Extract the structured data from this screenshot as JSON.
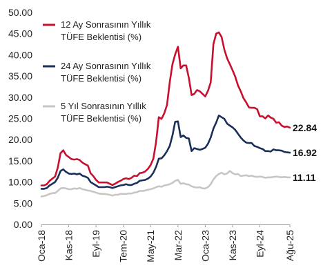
{
  "chart_data": {
    "type": "line",
    "title": "",
    "xlabel": "",
    "ylabel": "",
    "ylim": [
      0,
      50
    ],
    "y_ticks": [
      "0.00",
      "5.00",
      "10.00",
      "15.00",
      "20.00",
      "25.00",
      "30.00",
      "35.00",
      "40.00",
      "45.00",
      "50.00"
    ],
    "x_range": [
      "2018-01",
      "2025-08"
    ],
    "x_ticks": [
      "Oca-18",
      "Kas-18",
      "Eyl-19",
      "Tem-20",
      "May-21",
      "Mar-22",
      "Oca-23",
      "Kas-23",
      "Eyl-24",
      "Ağu-25"
    ],
    "x_tick_dates": [
      "2018-01",
      "2018-11",
      "2019-09",
      "2020-07",
      "2021-05",
      "2022-03",
      "2023-01",
      "2023-11",
      "2024-09",
      "2025-08"
    ],
    "grid": false,
    "legend_position": "top-left",
    "series": [
      {
        "name": "12 Ay Sonrasının Yıllık TÜFE Beklentisi (%)",
        "name_lines": [
          "12 Ay Sonrasının Yıllık",
          "TÜFE Beklentisi (%)"
        ],
        "color": "#c8102e",
        "end_label": "22.84",
        "points": [
          [
            "2018-01",
            9.2
          ],
          [
            "2018-02",
            9.2
          ],
          [
            "2018-03",
            9.5
          ],
          [
            "2018-04",
            10.3
          ],
          [
            "2018-05",
            10.8
          ],
          [
            "2018-06",
            11.3
          ],
          [
            "2018-07",
            13.4
          ],
          [
            "2018-08",
            16.8
          ],
          [
            "2018-09",
            17.5
          ],
          [
            "2018-10",
            16.4
          ],
          [
            "2018-11",
            15.9
          ],
          [
            "2018-12",
            15.4
          ],
          [
            "2019-01",
            15.3
          ],
          [
            "2019-02",
            15.4
          ],
          [
            "2019-03",
            15.2
          ],
          [
            "2019-04",
            14.6
          ],
          [
            "2019-05",
            14.2
          ],
          [
            "2019-06",
            13.9
          ],
          [
            "2019-07",
            12.1
          ],
          [
            "2019-08",
            11.4
          ],
          [
            "2019-09",
            10.5
          ],
          [
            "2019-10",
            9.9
          ],
          [
            "2019-11",
            9.9
          ],
          [
            "2019-12",
            9.9
          ],
          [
            "2020-01",
            9.9
          ],
          [
            "2020-02",
            9.6
          ],
          [
            "2020-03",
            9.3
          ],
          [
            "2020-04",
            9.6
          ],
          [
            "2020-05",
            10.0
          ],
          [
            "2020-06",
            10.3
          ],
          [
            "2020-07",
            10.7
          ],
          [
            "2020-08",
            10.9
          ],
          [
            "2020-09",
            10.7
          ],
          [
            "2020-10",
            11.0
          ],
          [
            "2020-11",
            11.5
          ],
          [
            "2020-12",
            11.4
          ],
          [
            "2021-01",
            12.1
          ],
          [
            "2021-02",
            12.2
          ],
          [
            "2021-03",
            12.5
          ],
          [
            "2021-04",
            13.1
          ],
          [
            "2021-05",
            14.0
          ],
          [
            "2021-06",
            15.5
          ],
          [
            "2021-07",
            19.5
          ],
          [
            "2021-08",
            25.3
          ],
          [
            "2021-09",
            24.9
          ],
          [
            "2021-10",
            26.2
          ],
          [
            "2021-11",
            28.2
          ],
          [
            "2021-12",
            33.5
          ],
          [
            "2022-01",
            37.8
          ],
          [
            "2022-02",
            40.1
          ],
          [
            "2022-03",
            41.9
          ],
          [
            "2022-04",
            36.8
          ],
          [
            "2022-05",
            37.5
          ],
          [
            "2022-06",
            37.5
          ],
          [
            "2022-07",
            34.6
          ],
          [
            "2022-08",
            30.5
          ],
          [
            "2022-09",
            30.8
          ],
          [
            "2022-10",
            31.7
          ],
          [
            "2022-11",
            31.4
          ],
          [
            "2022-12",
            30.8
          ],
          [
            "2023-01",
            30.2
          ],
          [
            "2023-02",
            31.5
          ],
          [
            "2023-03",
            33.5
          ],
          [
            "2023-04",
            42.5
          ],
          [
            "2023-05",
            45.0
          ],
          [
            "2023-06",
            45.3
          ],
          [
            "2023-07",
            44.2
          ],
          [
            "2023-08",
            41.2
          ],
          [
            "2023-09",
            39.2
          ],
          [
            "2023-10",
            37.8
          ],
          [
            "2023-11",
            36.4
          ],
          [
            "2023-12",
            34.8
          ],
          [
            "2024-01",
            32.8
          ],
          [
            "2024-02",
            31.4
          ],
          [
            "2024-03",
            29.8
          ],
          [
            "2024-04",
            28.8
          ],
          [
            "2024-05",
            27.6
          ],
          [
            "2024-06",
            27.5
          ],
          [
            "2024-07",
            27.5
          ],
          [
            "2024-08",
            27.2
          ],
          [
            "2024-09",
            25.5
          ],
          [
            "2024-10",
            25.5
          ],
          [
            "2024-11",
            25.0
          ],
          [
            "2024-12",
            25.7
          ],
          [
            "2025-01",
            25.2
          ],
          [
            "2025-02",
            24.9
          ],
          [
            "2025-03",
            24.0
          ],
          [
            "2025-04",
            24.1
          ],
          [
            "2025-05",
            23.3
          ],
          [
            "2025-06",
            23.0
          ],
          [
            "2025-07",
            23.1
          ],
          [
            "2025-08",
            22.84
          ]
        ]
      },
      {
        "name": "24 Ay Sonrasının Yıllık TÜFE Beklentisi (%)",
        "name_lines": [
          "24 Ay Sonrasının Yıllık",
          "TÜFE Beklentisi (%)"
        ],
        "color": "#1a2e5a",
        "end_label": "16.92",
        "points": [
          [
            "2018-01",
            8.4
          ],
          [
            "2018-02",
            8.4
          ],
          [
            "2018-03",
            8.6
          ],
          [
            "2018-04",
            9.2
          ],
          [
            "2018-05",
            9.6
          ],
          [
            "2018-06",
            10.0
          ],
          [
            "2018-07",
            11.0
          ],
          [
            "2018-08",
            12.6
          ],
          [
            "2018-09",
            13.0
          ],
          [
            "2018-10",
            12.4
          ],
          [
            "2018-11",
            12.0
          ],
          [
            "2018-12",
            11.9
          ],
          [
            "2019-01",
            12.0
          ],
          [
            "2019-02",
            11.8
          ],
          [
            "2019-03",
            12.0
          ],
          [
            "2019-04",
            11.5
          ],
          [
            "2019-05",
            11.3
          ],
          [
            "2019-06",
            11.0
          ],
          [
            "2019-07",
            10.0
          ],
          [
            "2019-08",
            9.6
          ],
          [
            "2019-09",
            9.2
          ],
          [
            "2019-10",
            8.8
          ],
          [
            "2019-11",
            8.8
          ],
          [
            "2019-12",
            8.8
          ],
          [
            "2020-01",
            8.9
          ],
          [
            "2020-02",
            8.8
          ],
          [
            "2020-03",
            8.6
          ],
          [
            "2020-04",
            8.8
          ],
          [
            "2020-05",
            9.0
          ],
          [
            "2020-06",
            9.2
          ],
          [
            "2020-07",
            9.3
          ],
          [
            "2020-08",
            9.5
          ],
          [
            "2020-09",
            9.3
          ],
          [
            "2020-10",
            9.3
          ],
          [
            "2020-11",
            9.6
          ],
          [
            "2020-12",
            9.8
          ],
          [
            "2021-01",
            10.3
          ],
          [
            "2021-02",
            10.4
          ],
          [
            "2021-03",
            10.5
          ],
          [
            "2021-04",
            10.8
          ],
          [
            "2021-05",
            11.3
          ],
          [
            "2021-06",
            12.2
          ],
          [
            "2021-07",
            13.6
          ],
          [
            "2021-08",
            15.5
          ],
          [
            "2021-09",
            15.6
          ],
          [
            "2021-10",
            16.3
          ],
          [
            "2021-11",
            17.3
          ],
          [
            "2021-12",
            18.5
          ],
          [
            "2022-01",
            21.0
          ],
          [
            "2022-02",
            24.2
          ],
          [
            "2022-03",
            24.3
          ],
          [
            "2022-04",
            20.6
          ],
          [
            "2022-05",
            21.0
          ],
          [
            "2022-06",
            20.4
          ],
          [
            "2022-07",
            20.3
          ],
          [
            "2022-08",
            17.3
          ],
          [
            "2022-09",
            18.0
          ],
          [
            "2022-10",
            17.8
          ],
          [
            "2022-11",
            17.6
          ],
          [
            "2022-12",
            17.8
          ],
          [
            "2023-01",
            18.1
          ],
          [
            "2023-02",
            19.0
          ],
          [
            "2023-03",
            20.5
          ],
          [
            "2023-04",
            22.6
          ],
          [
            "2023-05",
            24.0
          ],
          [
            "2023-06",
            25.7
          ],
          [
            "2023-07",
            25.3
          ],
          [
            "2023-08",
            24.9
          ],
          [
            "2023-09",
            23.8
          ],
          [
            "2023-10",
            23.3
          ],
          [
            "2023-11",
            22.9
          ],
          [
            "2023-12",
            22.3
          ],
          [
            "2024-01",
            21.4
          ],
          [
            "2024-02",
            20.5
          ],
          [
            "2024-03",
            19.8
          ],
          [
            "2024-04",
            19.3
          ],
          [
            "2024-05",
            19.2
          ],
          [
            "2024-06",
            19.2
          ],
          [
            "2024-07",
            18.5
          ],
          [
            "2024-08",
            18.3
          ],
          [
            "2024-09",
            18.0
          ],
          [
            "2024-10",
            17.8
          ],
          [
            "2024-11",
            17.3
          ],
          [
            "2024-12",
            17.3
          ],
          [
            "2025-01",
            17.2
          ],
          [
            "2025-02",
            17.7
          ],
          [
            "2025-03",
            17.5
          ],
          [
            "2025-04",
            17.5
          ],
          [
            "2025-05",
            17.4
          ],
          [
            "2025-06",
            17.1
          ],
          [
            "2025-07",
            17.0
          ],
          [
            "2025-08",
            16.92
          ]
        ]
      },
      {
        "name": "5 Yıl Sonrasının Yıllık TÜFE Beklentisi (%)",
        "name_lines": [
          "5 Yıl Sonrasının Yıllık",
          "TÜFE Beklentisi (%)"
        ],
        "color": "#c8c6c3",
        "end_label": "11.11",
        "points": [
          [
            "2018-01",
            6.6
          ],
          [
            "2018-02",
            6.7
          ],
          [
            "2018-03",
            6.9
          ],
          [
            "2018-04",
            7.2
          ],
          [
            "2018-05",
            7.4
          ],
          [
            "2018-06",
            7.4
          ],
          [
            "2018-07",
            7.9
          ],
          [
            "2018-08",
            8.5
          ],
          [
            "2018-09",
            8.6
          ],
          [
            "2018-10",
            8.5
          ],
          [
            "2018-11",
            8.3
          ],
          [
            "2018-12",
            8.3
          ],
          [
            "2019-01",
            8.5
          ],
          [
            "2019-02",
            8.4
          ],
          [
            "2019-03",
            8.6
          ],
          [
            "2019-04",
            8.3
          ],
          [
            "2019-05",
            8.2
          ],
          [
            "2019-06",
            8.0
          ],
          [
            "2019-07",
            7.9
          ],
          [
            "2019-08",
            7.7
          ],
          [
            "2019-09",
            7.5
          ],
          [
            "2019-10",
            7.3
          ],
          [
            "2019-11",
            7.2
          ],
          [
            "2019-12",
            7.2
          ],
          [
            "2020-01",
            7.1
          ],
          [
            "2020-02",
            7.0
          ],
          [
            "2020-03",
            6.8
          ],
          [
            "2020-04",
            7.0
          ],
          [
            "2020-05",
            7.0
          ],
          [
            "2020-06",
            7.2
          ],
          [
            "2020-07",
            7.2
          ],
          [
            "2020-08",
            7.2
          ],
          [
            "2020-09",
            7.3
          ],
          [
            "2020-10",
            7.3
          ],
          [
            "2020-11",
            7.5
          ],
          [
            "2020-12",
            7.6
          ],
          [
            "2021-01",
            7.9
          ],
          [
            "2021-02",
            7.9
          ],
          [
            "2021-03",
            8.0
          ],
          [
            "2021-04",
            8.2
          ],
          [
            "2021-05",
            8.3
          ],
          [
            "2021-06",
            8.5
          ],
          [
            "2021-07",
            8.8
          ],
          [
            "2021-08",
            9.0
          ],
          [
            "2021-09",
            8.9
          ],
          [
            "2021-10",
            9.2
          ],
          [
            "2021-11",
            9.3
          ],
          [
            "2021-12",
            9.5
          ],
          [
            "2022-01",
            9.8
          ],
          [
            "2022-02",
            10.3
          ],
          [
            "2022-03",
            10.5
          ],
          [
            "2022-04",
            9.6
          ],
          [
            "2022-05",
            9.7
          ],
          [
            "2022-06",
            9.5
          ],
          [
            "2022-07",
            9.4
          ],
          [
            "2022-08",
            9.0
          ],
          [
            "2022-09",
            8.8
          ],
          [
            "2022-10",
            8.7
          ],
          [
            "2022-11",
            8.8
          ],
          [
            "2022-12",
            8.5
          ],
          [
            "2023-01",
            8.5
          ],
          [
            "2023-02",
            8.8
          ],
          [
            "2023-03",
            9.5
          ],
          [
            "2023-04",
            10.6
          ],
          [
            "2023-05",
            11.4
          ],
          [
            "2023-06",
            11.9
          ],
          [
            "2023-07",
            12.2
          ],
          [
            "2023-08",
            11.8
          ],
          [
            "2023-09",
            12.0
          ],
          [
            "2023-10",
            12.6
          ],
          [
            "2023-11",
            12.1
          ],
          [
            "2023-12",
            11.8
          ],
          [
            "2024-01",
            11.9
          ],
          [
            "2024-02",
            11.4
          ],
          [
            "2024-03",
            11.5
          ],
          [
            "2024-04",
            11.6
          ],
          [
            "2024-05",
            11.4
          ],
          [
            "2024-06",
            11.5
          ],
          [
            "2024-07",
            11.3
          ],
          [
            "2024-08",
            11.2
          ],
          [
            "2024-09",
            11.3
          ],
          [
            "2024-10",
            11.2
          ],
          [
            "2024-11",
            11.0
          ],
          [
            "2024-12",
            11.1
          ],
          [
            "2025-01",
            11.1
          ],
          [
            "2025-02",
            11.2
          ],
          [
            "2025-03",
            11.3
          ],
          [
            "2025-04",
            11.2
          ],
          [
            "2025-05",
            11.1
          ],
          [
            "2025-06",
            11.2
          ],
          [
            "2025-07",
            11.1
          ],
          [
            "2025-08",
            11.11
          ]
        ]
      }
    ]
  }
}
